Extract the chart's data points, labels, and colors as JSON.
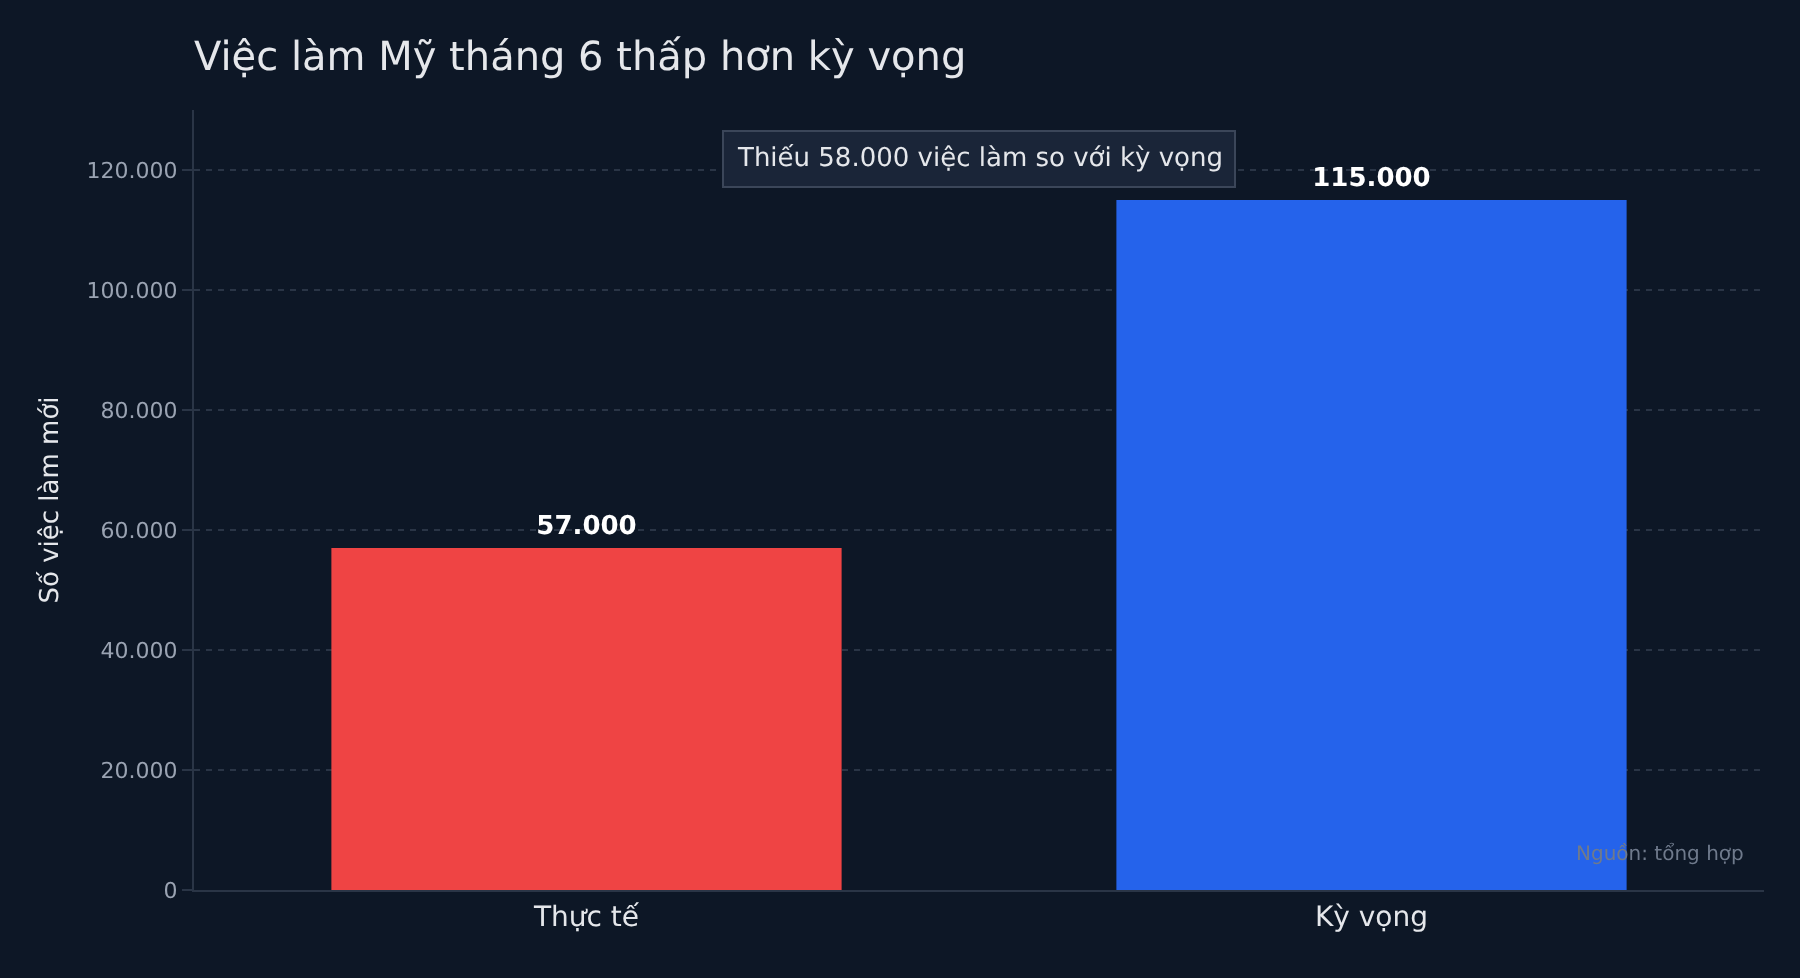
{
  "chart_data": {
    "type": "bar",
    "title": "Việc làm Mỹ tháng 6 thấp hơn kỳ vọng",
    "ylabel": "Số việc làm mới",
    "categories": [
      "Thực tế",
      "Kỳ vọng"
    ],
    "values": [
      57000,
      115000
    ],
    "colors": [
      "#ef4444",
      "#2563eb"
    ],
    "value_labels": [
      "57.000",
      "115.000"
    ],
    "ylim": [
      0,
      130000
    ],
    "yticks": [
      {
        "value": 0,
        "label": "0"
      },
      {
        "value": 20000,
        "label": "20.000"
      },
      {
        "value": 40000,
        "label": "40.000"
      },
      {
        "value": 60000,
        "label": "60.000"
      },
      {
        "value": 80000,
        "label": "80.000"
      },
      {
        "value": 100000,
        "label": "100.000"
      },
      {
        "value": 120000,
        "label": "120.000"
      }
    ],
    "grid": "y",
    "annotations": [
      "Thiếu 58.000 việc làm so với kỳ vọng",
      "Nguồn: tổng hợp"
    ]
  }
}
